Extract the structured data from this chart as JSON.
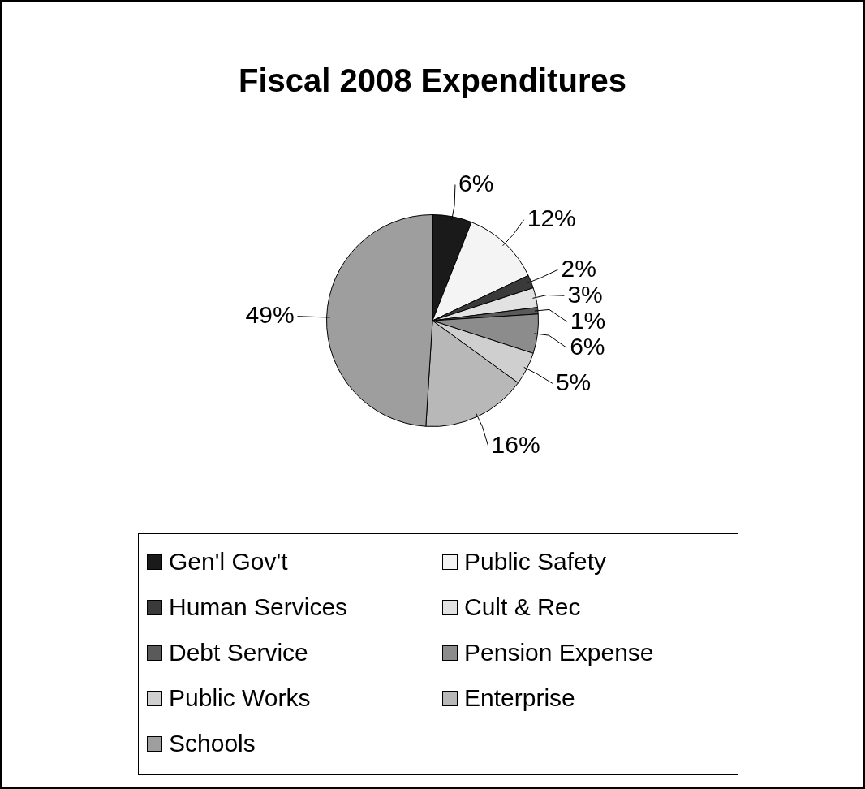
{
  "chart_data": {
    "type": "pie",
    "title": "Fiscal 2008 Expenditures",
    "categories": [
      "Gen'l Gov't",
      "Public Safety",
      "Human Services",
      "Cult & Rec",
      "Debt Service",
      "Pension Expense",
      "Public Works",
      "Enterprise",
      "Schools"
    ],
    "values": [
      6,
      12,
      2,
      3,
      1,
      6,
      5,
      16,
      49
    ],
    "colors": [
      "#1a1a1a",
      "#f4f4f4",
      "#3a3a3a",
      "#e2e2e2",
      "#5a5a5a",
      "#8c8c8c",
      "#cfcfcf",
      "#b8b8b8",
      "#9e9e9e"
    ],
    "value_labels": [
      "6%",
      "12%",
      "2%",
      "3%",
      "1%",
      "6%",
      "5%",
      "16%",
      "49%"
    ],
    "legend": "bottom"
  }
}
